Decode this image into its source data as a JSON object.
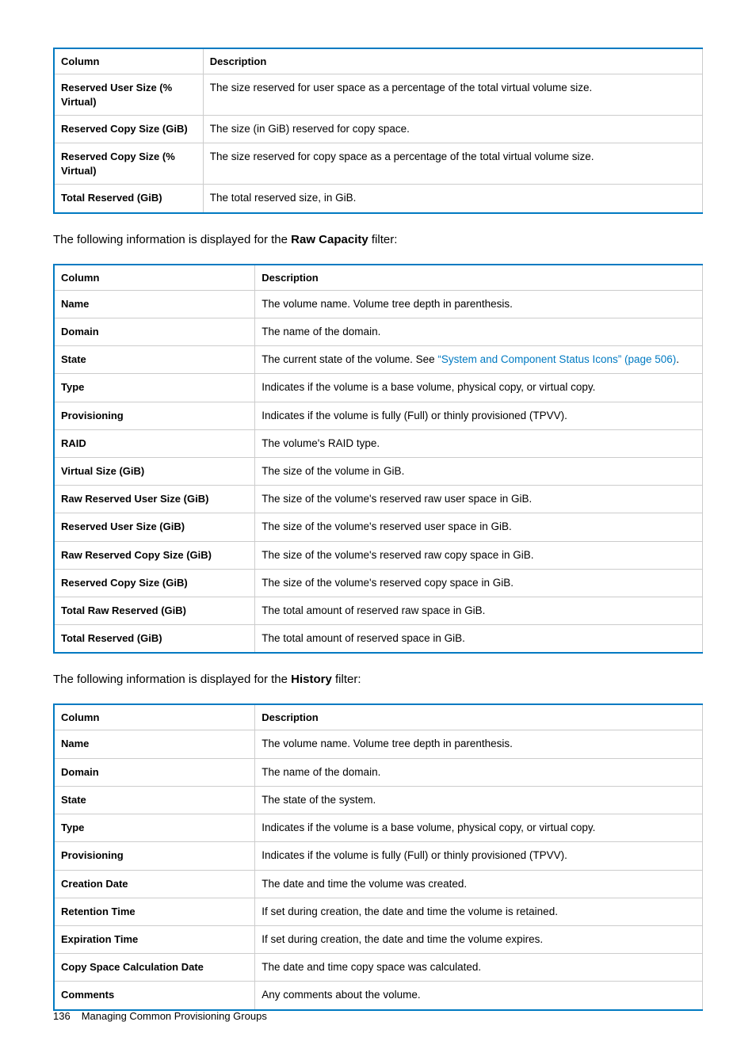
{
  "colors": {
    "table_border": "#007ac2",
    "inner_border": "#cccccc",
    "link": "#007ac2",
    "text": "#000000",
    "background": "#ffffff"
  },
  "tables": {
    "t1": {
      "col1_width": "23%",
      "headers": [
        "Column",
        "Description"
      ],
      "rows": [
        [
          "Reserved User Size (% Virtual)",
          "The size reserved for user space as a percentage of the total virtual volume size."
        ],
        [
          "Reserved Copy Size (GiB)",
          "The size (in GiB) reserved for copy space."
        ],
        [
          "Reserved Copy Size (% Virtual)",
          "The size reserved for copy space as a percentage of the total virtual volume size."
        ],
        [
          "Total Reserved (GiB)",
          "The total reserved size, in GiB."
        ]
      ]
    },
    "t2": {
      "col1_width": "31%",
      "headers": [
        "Column",
        "Description"
      ],
      "rows": [
        [
          "Name",
          "The volume name. Volume tree depth in parenthesis."
        ],
        [
          "Domain",
          "The name of the domain."
        ],
        [
          "State",
          {
            "prefix": "The current state of the volume. See ",
            "link": "“System and Component Status Icons” (page 506)",
            "suffix": "."
          }
        ],
        [
          "Type",
          "Indicates if the volume is a base volume, physical copy, or virtual copy."
        ],
        [
          "Provisioning",
          "Indicates if the volume is fully (Full) or thinly provisioned (TPVV)."
        ],
        [
          "RAID",
          "The volume's RAID type."
        ],
        [
          "Virtual Size (GiB)",
          "The size of the volume in GiB."
        ],
        [
          "Raw Reserved User Size (GiB)",
          "The size of the volume's reserved raw user space in GiB."
        ],
        [
          "Reserved User Size (GiB)",
          "The size of the volume's reserved user space in GiB."
        ],
        [
          "Raw Reserved Copy Size (GiB)",
          "The size of the volume's reserved raw copy space in GiB."
        ],
        [
          "Reserved Copy Size (GiB)",
          "The size of the volume's reserved copy space in GiB."
        ],
        [
          "Total Raw Reserved (GiB)",
          "The total amount of reserved raw space in GiB."
        ],
        [
          "Total Reserved (GiB)",
          "The total amount of reserved space in GiB."
        ]
      ]
    },
    "t3": {
      "col1_width": "31%",
      "headers": [
        "Column",
        "Description"
      ],
      "rows": [
        [
          "Name",
          "The volume name. Volume tree depth in parenthesis."
        ],
        [
          "Domain",
          "The name of the domain."
        ],
        [
          "State",
          "The state of the system."
        ],
        [
          "Type",
          "Indicates if the volume is a base volume, physical copy, or virtual copy."
        ],
        [
          "Provisioning",
          "Indicates if the volume is fully (Full) or thinly provisioned (TPVV)."
        ],
        [
          "Creation Date",
          "The date and time the volume was created."
        ],
        [
          "Retention Time",
          "If set during creation, the date and time the volume is retained."
        ],
        [
          "Expiration Time",
          "If set during creation, the date and time the volume expires."
        ],
        [
          "Copy Space Calculation Date",
          "The date and time copy space was calculated."
        ],
        [
          "Comments",
          "Any comments about the volume."
        ]
      ]
    }
  },
  "captions": {
    "c1": {
      "prefix": "The following information is displayed for the ",
      "bold": "Raw Capacity",
      "suffix": " filter:"
    },
    "c2": {
      "prefix": "The following information is displayed for the ",
      "bold": "History",
      "suffix": " filter:"
    }
  },
  "footer": {
    "page": "136",
    "title": "Managing Common Provisioning Groups"
  }
}
